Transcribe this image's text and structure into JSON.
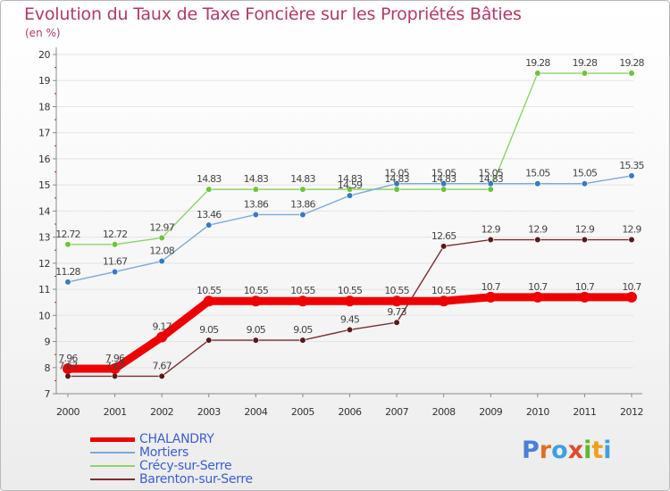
{
  "title": "Evolution du Taux de Taxe Foncière sur les Propriétés Bâties",
  "unit_label": "(en %)",
  "logo": {
    "text": "Proxiti",
    "letters": [
      "P",
      "r",
      "o",
      "x",
      "i",
      "t",
      "i"
    ],
    "colors": [
      "#4a7fd8",
      "#e07020",
      "#3fa0e0",
      "#e04a2a",
      "#5cb830",
      "#f0a020",
      "#3fa0e0"
    ]
  },
  "chart_data": {
    "type": "line",
    "title": "Evolution du Taux de Taxe Foncière sur les Propriétés Bâties",
    "ylabel": "(en %)",
    "xlabel": "",
    "ylim": [
      7,
      20
    ],
    "yticks": [
      7,
      8,
      9,
      10,
      11,
      12,
      13,
      14,
      15,
      16,
      17,
      18,
      19,
      20
    ],
    "x": [
      "2000",
      "2001",
      "2002",
      "2003",
      "2004",
      "2005",
      "2006",
      "2007",
      "2008",
      "2009",
      "2010",
      "2011",
      "2012"
    ],
    "series": [
      {
        "name": "Barenton-sur-Serre",
        "color": "#7a2f2f",
        "marker": "#5a1818",
        "values": [
          7.67,
          7.67,
          7.67,
          9.05,
          9.05,
          9.05,
          9.45,
          9.73,
          12.65,
          12.9,
          12.9,
          12.9,
          12.9
        ],
        "labels": [
          "7.67",
          "7.67",
          "7.67",
          "9.05",
          "9.05",
          "9.05",
          "9.45",
          "9.73",
          "12.65",
          "12.9",
          "12.9",
          "12.9",
          "12.9"
        ]
      },
      {
        "name": "Crécy-sur-Serre",
        "color": "#8ad46a",
        "marker": "#6cc43c",
        "values": [
          12.72,
          12.72,
          12.97,
          14.83,
          14.83,
          14.83,
          14.83,
          14.83,
          14.83,
          14.83,
          19.28,
          19.28,
          19.28
        ],
        "labels": [
          "12.72",
          "12.72",
          "12.97",
          "14.83",
          "14.83",
          "14.83",
          "14.83",
          "14.83",
          "14.83",
          "14.83",
          "19.28",
          "19.28",
          "19.28"
        ]
      },
      {
        "name": "Mortiers",
        "color": "#7aaad6",
        "marker": "#3a7abf",
        "values": [
          11.28,
          11.67,
          12.08,
          13.46,
          13.86,
          13.86,
          14.59,
          15.05,
          15.05,
          15.05,
          15.05,
          15.05,
          15.35
        ],
        "labels": [
          "11.28",
          "11.67",
          "12.08",
          "13.46",
          "13.86",
          "13.86",
          "14.59",
          "15.05",
          "15.05",
          "15.05",
          "15.05",
          "15.05",
          "15.35"
        ]
      },
      {
        "name": "CHALANDRY",
        "color": "#ee0000",
        "marker": "#ee0000",
        "values": [
          7.96,
          7.96,
          9.17,
          10.55,
          10.55,
          10.55,
          10.55,
          10.55,
          10.55,
          10.7,
          10.7,
          10.7,
          10.7
        ],
        "labels": [
          "7.96",
          "7.96",
          "9.17",
          "10.55",
          "10.55",
          "10.55",
          "10.55",
          "10.55",
          "10.55",
          "10.7",
          "10.7",
          "10.7",
          "10.7"
        ]
      }
    ],
    "legend": [
      {
        "name": "CHALANDRY",
        "color": "#ee0000"
      },
      {
        "name": "Mortiers",
        "color": "#7aaad6"
      },
      {
        "name": "Crécy-sur-Serre",
        "color": "#8ad46a"
      },
      {
        "name": "Barenton-sur-Serre",
        "color": "#7a2f2f"
      }
    ]
  }
}
